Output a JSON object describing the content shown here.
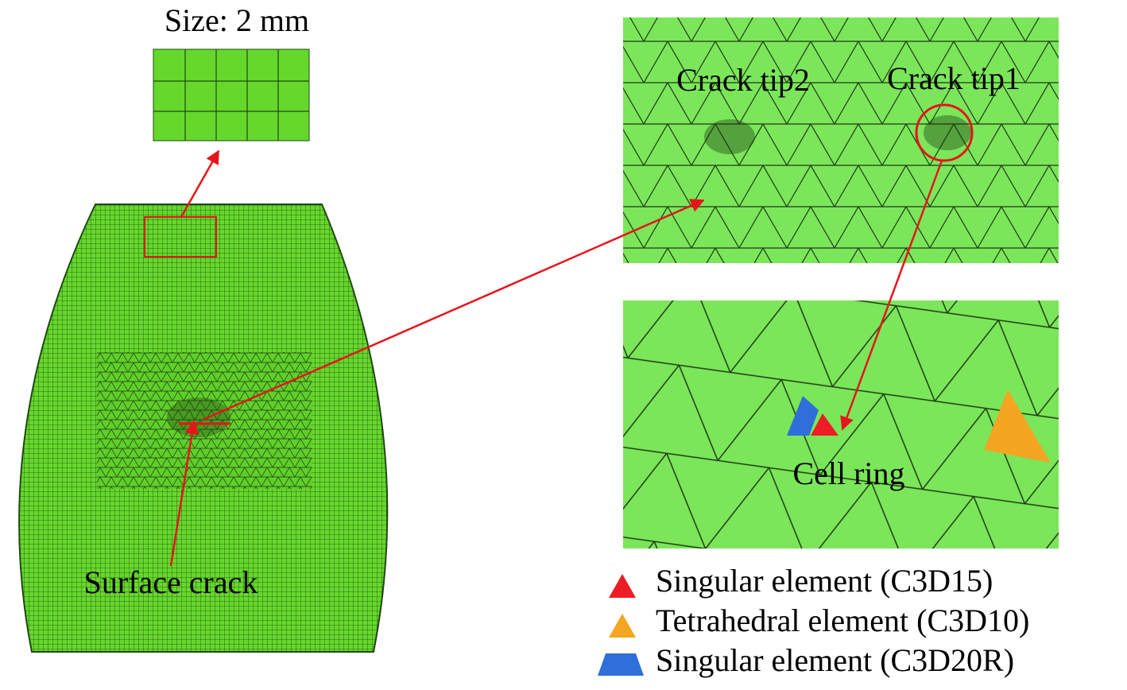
{
  "inset_label": "Size: 2 mm",
  "labels": {
    "crack_tip2": "Crack tip2",
    "crack_tip1": "Crack tip1",
    "cell_ring": "Cell ring",
    "surface_crack": "Surface crack"
  },
  "legend": [
    "Singular element (C3D15)",
    "Tetrahedral element (C3D10)",
    "Singular element (C3D20R)"
  ]
}
